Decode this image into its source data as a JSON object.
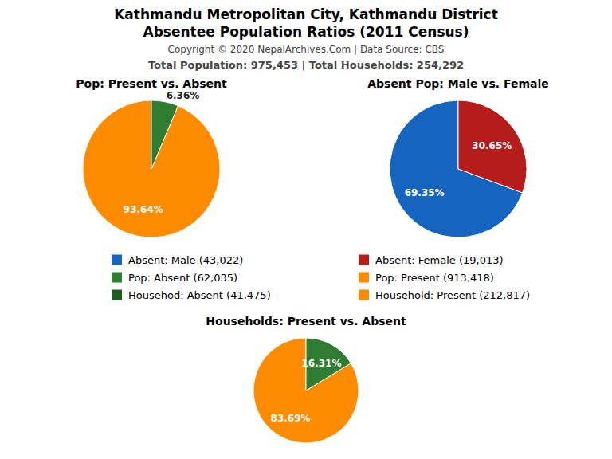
{
  "title": "Kathmandu Metropolitan City, Kathmandu District",
  "subtitle": "Absentee Population Ratios (2011 Census)",
  "annotations": [
    "Copyright © 2020 NepalArchives.Com | Data Source: CBS",
    "Total Population: 975,453 | Total Households: 254,292"
  ],
  "legend_items": [
    {
      "label": "Absent: Male (43,022)",
      "color": "#1565C0"
    },
    {
      "label": "Absent: Female (19,013)",
      "color": "#B71C1C"
    },
    {
      "label": "Pop: Absent (62,035)",
      "color": "#2E7D32"
    },
    {
      "label": "Pop: Present (913,418)",
      "color": "#FF8C00"
    },
    {
      "label": "Househod: Absent (41,475)",
      "color": "#1B5E20"
    },
    {
      "label": "Household: Present (212,817)",
      "color": "#FF8C00"
    }
  ],
  "chart_data": [
    {
      "type": "pie",
      "title": "Pop: Present vs. Absent",
      "values": [
        93.64,
        6.36
      ],
      "value_labels": [
        "93.64%",
        "6.36%"
      ],
      "colors": [
        "#FF8C00",
        "#2E7D32"
      ],
      "data_labels": true
    },
    {
      "type": "pie",
      "title": "Absent Pop: Male vs. Female",
      "values": [
        69.35,
        30.65
      ],
      "value_labels": [
        "69.35%",
        "30.65%"
      ],
      "colors": [
        "#1565C0",
        "#B71C1C"
      ],
      "data_labels": true
    },
    {
      "type": "pie",
      "title": "Households: Present vs. Absent",
      "values": [
        83.69,
        16.31
      ],
      "value_labels": [
        "83.69%",
        "16.31%"
      ],
      "colors": [
        "#FF8C00",
        "#2E7D32"
      ],
      "data_labels": true
    }
  ]
}
